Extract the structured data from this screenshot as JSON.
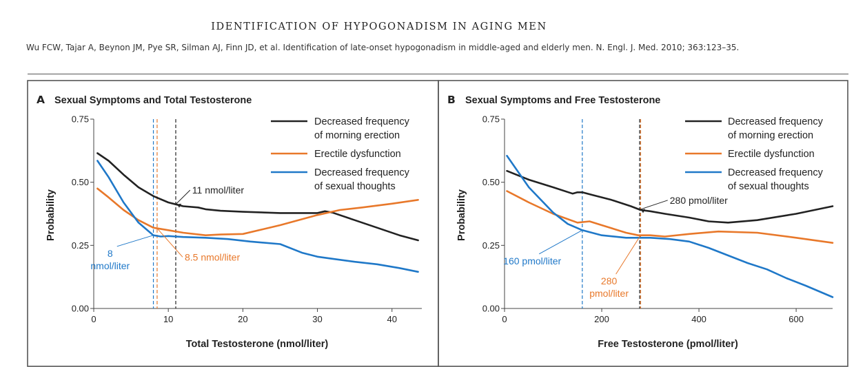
{
  "header": {
    "title": "IDENTIFICATION OF HYPOGONADISM IN AGING MEN",
    "citation": "Wu FCW, Tajar A, Beynon JM, Pye SR, Silman AJ, Finn JD, et al. Identification of late-onset hypogonadism in middle-aged and elderly men. N. Engl. J. Med. 2010; 363:123–35."
  },
  "colors": {
    "black": "#222222",
    "orange": "#e8782a",
    "blue": "#1f78c8",
    "frame": "#555555"
  },
  "chart_data": [
    {
      "type": "line",
      "panel_letter": "A",
      "title": "Sexual Symptoms and Total Testosterone",
      "xlabel": "Total Testosterone (nmol/liter)",
      "ylabel": "Probability",
      "xlim": [
        0,
        44
      ],
      "ylim": [
        0,
        0.75
      ],
      "xticks": [
        0,
        10,
        20,
        30,
        40
      ],
      "yticks": [
        0,
        0.25,
        0.5,
        0.75
      ],
      "ytick_labels": [
        "0.00",
        "0.25",
        "0.50",
        "0.75"
      ],
      "legend_position": "top-right",
      "series": [
        {
          "name": "Decreased frequency of morning erection",
          "legend_lines": [
            "Decreased frequency",
            "of morning erection"
          ],
          "color": "#222222",
          "x": [
            0.5,
            2,
            4,
            6,
            8,
            10,
            12,
            14,
            15,
            17,
            20,
            25,
            30,
            31,
            32,
            35,
            38,
            41,
            43.5
          ],
          "y": [
            0.615,
            0.585,
            0.53,
            0.48,
            0.445,
            0.42,
            0.405,
            0.4,
            0.393,
            0.387,
            0.383,
            0.378,
            0.378,
            0.385,
            0.38,
            0.35,
            0.32,
            0.29,
            0.27
          ]
        },
        {
          "name": "Erectile dysfunction",
          "legend_lines": [
            "Erectile dysfunction"
          ],
          "color": "#e8782a",
          "x": [
            0.5,
            2,
            4,
            6,
            8,
            10,
            12,
            15,
            17,
            20,
            25,
            30,
            33,
            36,
            40,
            43.5
          ],
          "y": [
            0.475,
            0.44,
            0.39,
            0.35,
            0.32,
            0.31,
            0.3,
            0.29,
            0.293,
            0.295,
            0.33,
            0.37,
            0.39,
            0.4,
            0.415,
            0.43
          ]
        },
        {
          "name": "Decreased frequency of sexual thoughts",
          "legend_lines": [
            "Decreased frequency",
            "of sexual thoughts"
          ],
          "color": "#1f78c8",
          "x": [
            0.5,
            2,
            4,
            6,
            8,
            9,
            10,
            12,
            15,
            18,
            21,
            25,
            28,
            30,
            32,
            35,
            38,
            41,
            43.5
          ],
          "y": [
            0.585,
            0.52,
            0.42,
            0.34,
            0.29,
            0.285,
            0.287,
            0.283,
            0.28,
            0.275,
            0.265,
            0.255,
            0.22,
            0.205,
            0.197,
            0.185,
            0.175,
            0.16,
            0.145
          ]
        }
      ],
      "thresholds": [
        {
          "x": 8,
          "color": "#1f78c8",
          "label_lines": [
            "8",
            "nmol/liter"
          ],
          "label_anchor_x": 2.2,
          "label_anchor_y": 0.205,
          "label_align": "middle"
        },
        {
          "x": 8.5,
          "color": "#e8782a",
          "label_lines": [
            "8.5 nmol/liter"
          ],
          "label_anchor_x": 12.2,
          "label_anchor_y": 0.19,
          "label_align": "start"
        },
        {
          "x": 11,
          "color": "#222222",
          "label_lines": [
            "11 nmol/liter"
          ],
          "label_anchor_x": 13.2,
          "label_anchor_y": 0.455,
          "label_align": "start"
        }
      ]
    },
    {
      "type": "line",
      "panel_letter": "B",
      "title": "Sexual Symptoms and Free Testosterone",
      "xlabel": "Free Testosterone (pmol/liter)",
      "ylabel": "Probability",
      "xlim": [
        0,
        675
      ],
      "ylim": [
        0,
        0.75
      ],
      "xticks": [
        0,
        200,
        400,
        600
      ],
      "yticks": [
        0,
        0.25,
        0.5,
        0.75
      ],
      "ytick_labels": [
        "0.00",
        "0.25",
        "0.50",
        "0.75"
      ],
      "legend_position": "top-right",
      "series": [
        {
          "name": "Decreased frequency of morning erection",
          "legend_lines": [
            "Decreased frequency",
            "of morning erection"
          ],
          "color": "#222222",
          "x": [
            5,
            50,
            100,
            140,
            150,
            160,
            180,
            220,
            260,
            280,
            300,
            330,
            380,
            420,
            460,
            520,
            600,
            675
          ],
          "y": [
            0.545,
            0.51,
            0.48,
            0.455,
            0.46,
            0.46,
            0.45,
            0.43,
            0.405,
            0.39,
            0.385,
            0.375,
            0.36,
            0.345,
            0.34,
            0.35,
            0.375,
            0.405
          ]
        },
        {
          "name": "Erectile dysfunction",
          "legend_lines": [
            "Erectile dysfunction"
          ],
          "color": "#e8782a",
          "x": [
            5,
            50,
            100,
            150,
            175,
            200,
            250,
            275,
            300,
            330,
            380,
            440,
            520,
            600,
            675
          ],
          "y": [
            0.465,
            0.42,
            0.375,
            0.34,
            0.345,
            0.33,
            0.3,
            0.29,
            0.29,
            0.285,
            0.295,
            0.305,
            0.3,
            0.28,
            0.26
          ]
        },
        {
          "name": "Decreased frequency of sexual thoughts",
          "legend_lines": [
            "Decreased frequency",
            "of sexual thoughts"
          ],
          "color": "#1f78c8",
          "x": [
            5,
            50,
            100,
            130,
            160,
            200,
            250,
            300,
            340,
            380,
            420,
            460,
            500,
            540,
            580,
            620,
            675
          ],
          "y": [
            0.605,
            0.48,
            0.38,
            0.335,
            0.31,
            0.29,
            0.28,
            0.28,
            0.275,
            0.265,
            0.24,
            0.21,
            0.18,
            0.155,
            0.12,
            0.09,
            0.045
          ]
        }
      ],
      "thresholds": [
        {
          "x": 160,
          "color": "#1f78c8",
          "label_lines": [
            "160 pmol/liter"
          ],
          "label_anchor_x": 57,
          "label_anchor_y": 0.175,
          "label_align": "middle"
        },
        {
          "x": 280,
          "color": "#e8782a",
          "label_lines": [
            "280",
            "pmol/liter"
          ],
          "label_anchor_x": 215,
          "label_anchor_y": 0.095,
          "label_align": "middle"
        },
        {
          "x": 278,
          "color": "#222222",
          "label_lines": [
            "280 pmol/liter"
          ],
          "label_anchor_x": 340,
          "label_anchor_y": 0.415,
          "label_align": "start"
        }
      ]
    }
  ]
}
